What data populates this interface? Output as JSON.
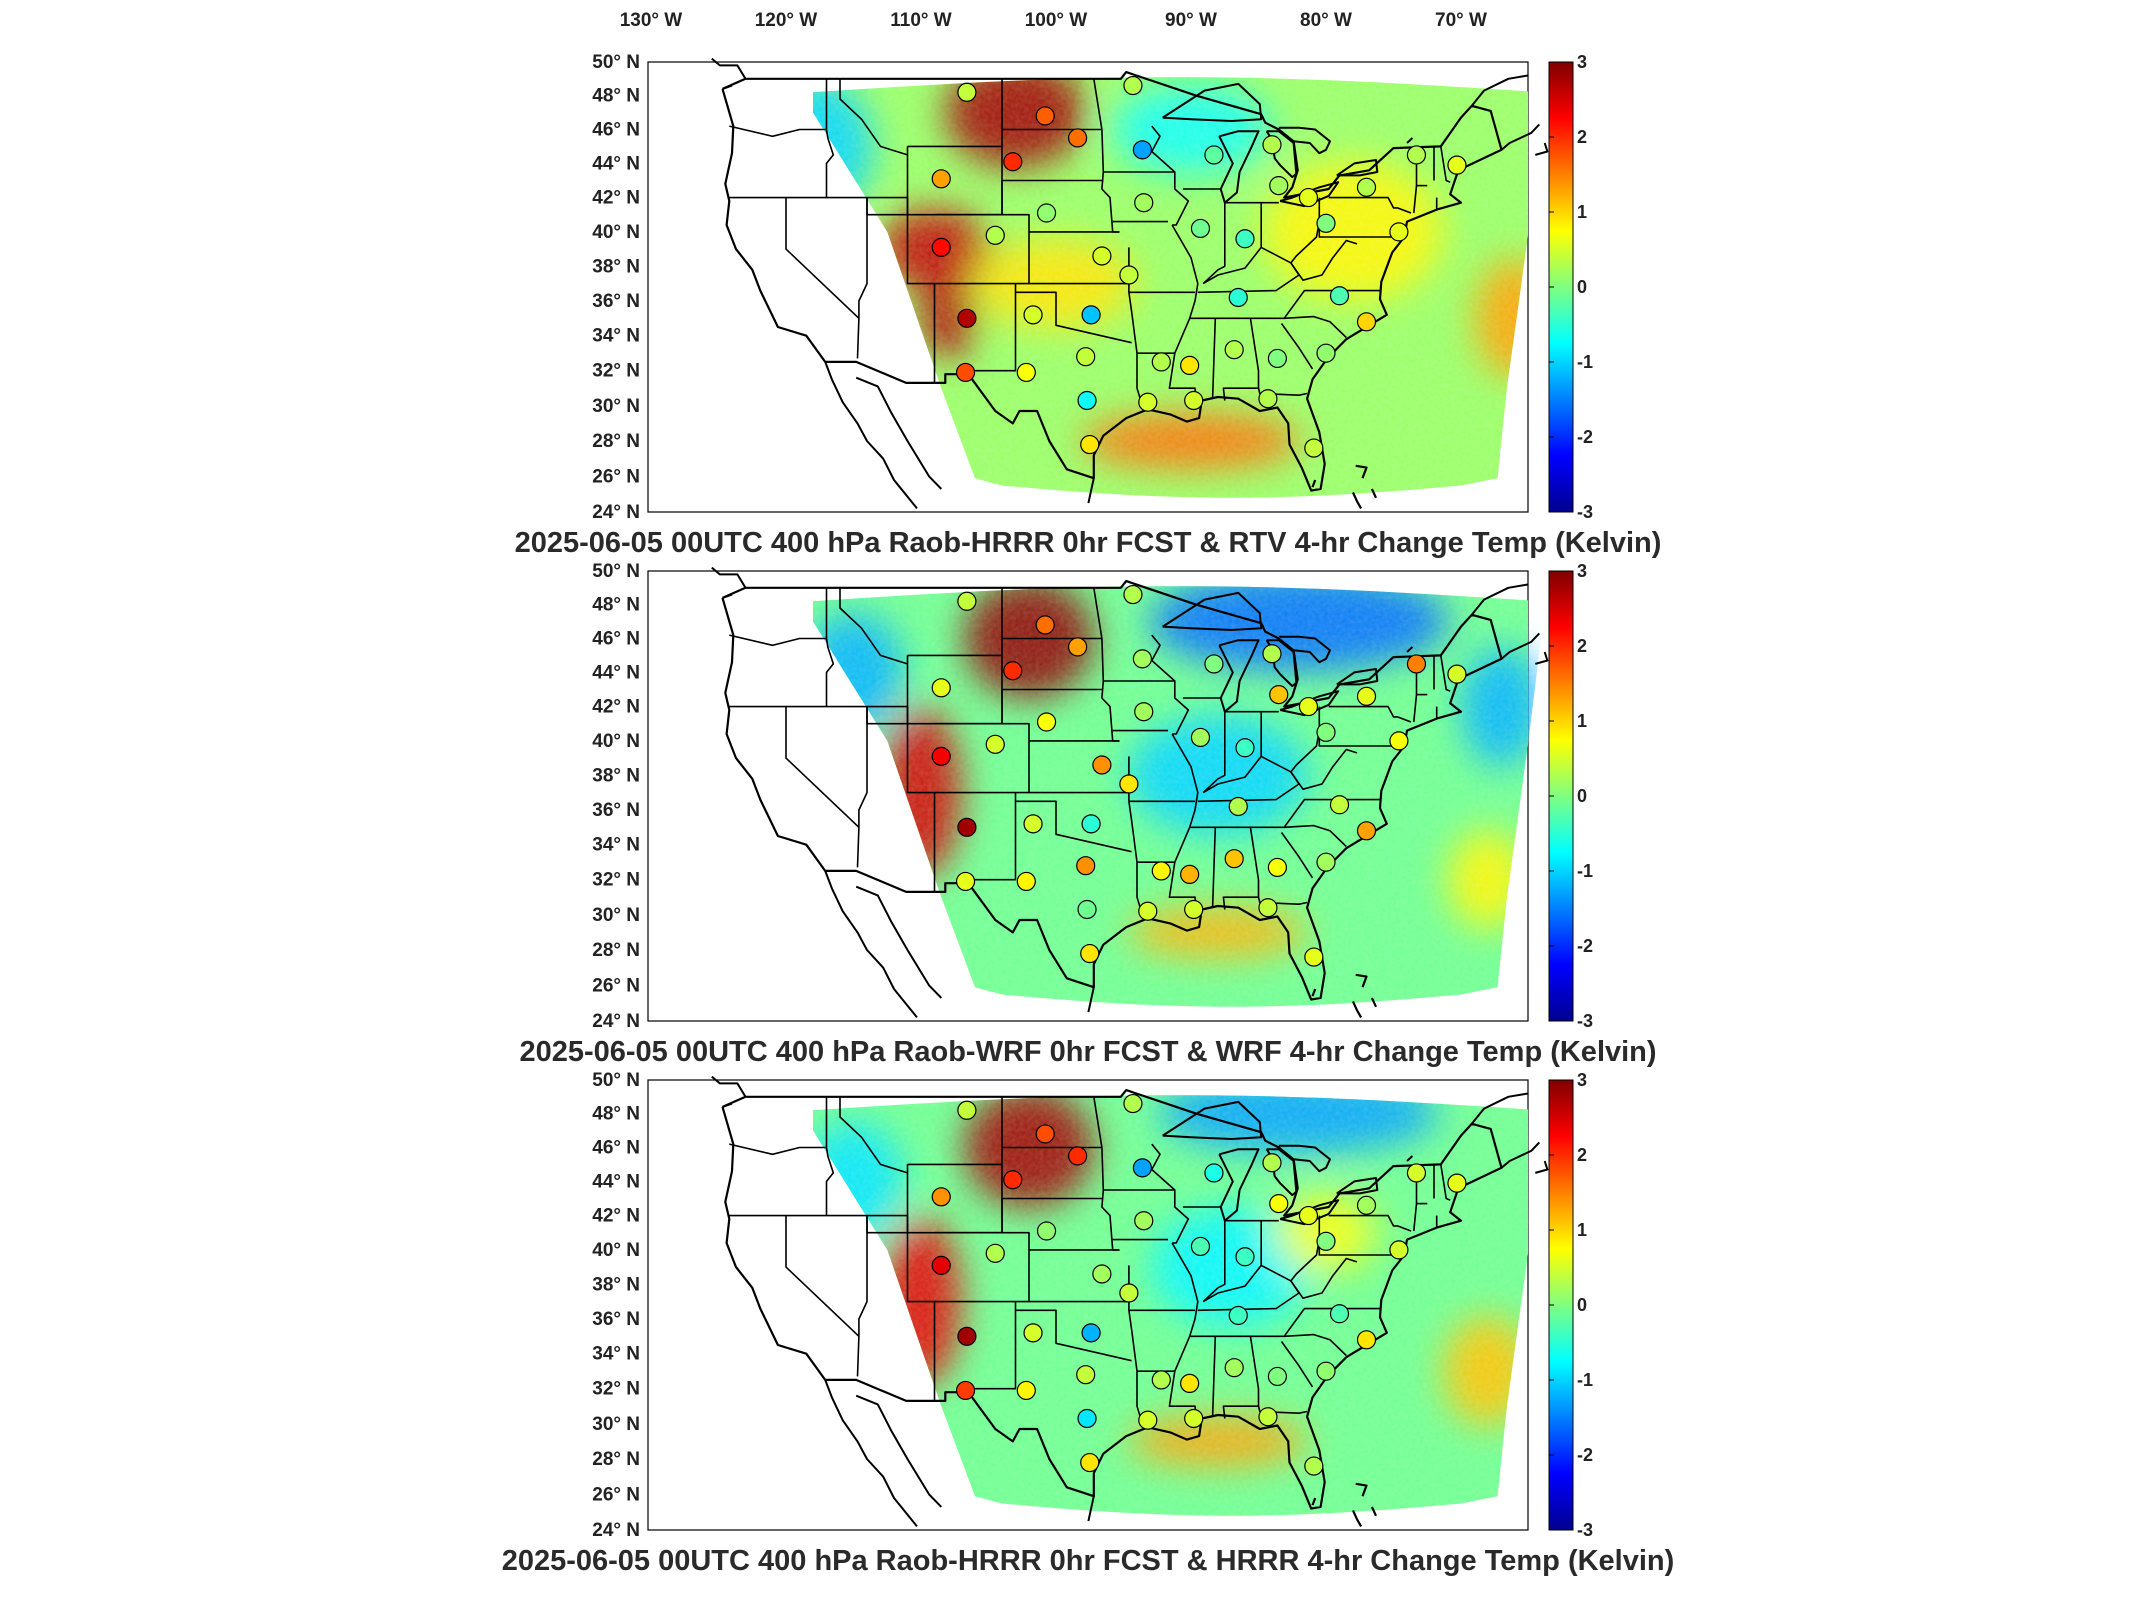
{
  "top_longitude_labels": [
    "130° W",
    "120° W",
    "110° W",
    "100° W",
    "90° W",
    "80° W",
    "70° W"
  ],
  "latitude_labels": [
    "50° N",
    "48° N",
    "46° N",
    "44° N",
    "42° N",
    "40° N",
    "38° N",
    "36° N",
    "34° N",
    "32° N",
    "30° N",
    "28° N",
    "26° N",
    "24° N"
  ],
  "colorbar": {
    "ticks": [
      "3",
      "2",
      "1",
      "0",
      "-1",
      "-2",
      "-3"
    ],
    "colors": [
      "#7f0000",
      "#ff0000",
      "#ff8000",
      "#ffff00",
      "#80ff80",
      "#00ffff",
      "#0080ff",
      "#0000ff",
      "#00008f"
    ]
  },
  "panels": [
    {
      "title": "2025-06-05 00UTC 400 hPa Raob-HRRR 0hr FCST & RTV 4-hr Change Temp (Kelvin)",
      "anomalies": [
        {
          "lon": -103,
          "lat": 47,
          "v": 2.8,
          "rx": 70,
          "ry": 55
        },
        {
          "lon": -109,
          "lat": 39,
          "v": 2.6,
          "rx": 55,
          "ry": 40
        },
        {
          "lon": -108,
          "lat": 35,
          "v": 2.7,
          "rx": 28,
          "ry": 40
        },
        {
          "lon": -90,
          "lat": 28,
          "v": 1.6,
          "rx": 110,
          "ry": 28
        },
        {
          "lon": -66,
          "lat": 35,
          "v": 1.3,
          "rx": 40,
          "ry": 60
        },
        {
          "lon": -78,
          "lat": 40,
          "v": 0.8,
          "rx": 90,
          "ry": 70
        },
        {
          "lon": -118,
          "lat": 45,
          "v": -1.0,
          "rx": 60,
          "ry": 70
        },
        {
          "lon": -90,
          "lat": 46,
          "v": -0.7,
          "rx": 80,
          "ry": 45
        },
        {
          "lon": -100,
          "lat": 37,
          "v": 0.9,
          "rx": 80,
          "ry": 45
        }
      ]
    },
    {
      "title": "2025-06-05 00UTC 400 hPa Raob-WRF 0hr FCST & WRF 4-hr Change Temp (Kelvin)",
      "anomalies": [
        {
          "lon": -102,
          "lat": 46,
          "v": 2.9,
          "rx": 65,
          "ry": 60
        },
        {
          "lon": -110,
          "lat": 37,
          "v": 2.5,
          "rx": 40,
          "ry": 85
        },
        {
          "lon": -82,
          "lat": 47,
          "v": -1.6,
          "rx": 150,
          "ry": 50
        },
        {
          "lon": -115,
          "lat": 44,
          "v": -1.2,
          "rx": 50,
          "ry": 60
        },
        {
          "lon": -88,
          "lat": 38,
          "v": -1.0,
          "rx": 90,
          "ry": 60
        },
        {
          "lon": -67,
          "lat": 42,
          "v": -1.2,
          "rx": 40,
          "ry": 60
        },
        {
          "lon": -88,
          "lat": 29,
          "v": 1.2,
          "rx": 90,
          "ry": 25
        },
        {
          "lon": -68,
          "lat": 32,
          "v": 0.8,
          "rx": 40,
          "ry": 50
        }
      ]
    },
    {
      "title": "2025-06-05 00UTC 400 hPa Raob-HRRR 0hr FCST & HRRR 4-hr Change Temp (Kelvin)",
      "anomalies": [
        {
          "lon": -102,
          "lat": 46,
          "v": 2.8,
          "rx": 65,
          "ry": 60
        },
        {
          "lon": -110,
          "lat": 37,
          "v": 2.4,
          "rx": 40,
          "ry": 85
        },
        {
          "lon": -82,
          "lat": 48,
          "v": -1.3,
          "rx": 140,
          "ry": 40
        },
        {
          "lon": -115,
          "lat": 44,
          "v": -0.9,
          "rx": 50,
          "ry": 60
        },
        {
          "lon": -87,
          "lat": 39,
          "v": -0.8,
          "rx": 80,
          "ry": 60
        },
        {
          "lon": -88,
          "lat": 29,
          "v": 1.3,
          "rx": 90,
          "ry": 25
        },
        {
          "lon": -68,
          "lat": 33,
          "v": 1.1,
          "rx": 45,
          "ry": 55
        },
        {
          "lon": -80,
          "lat": 41,
          "v": 0.7,
          "rx": 50,
          "ry": 40
        }
      ]
    }
  ],
  "raob_stations": [
    {
      "lon": -106.6,
      "lat": 48.2,
      "v": [
        0.4,
        0.4,
        0.4
      ]
    },
    {
      "lon": -100.8,
      "lat": 46.8,
      "v": [
        1.7,
        1.6,
        1.8
      ]
    },
    {
      "lon": -98.4,
      "lat": 45.5,
      "v": [
        1.6,
        1.3,
        2.0
      ]
    },
    {
      "lon": -103.2,
      "lat": 44.1,
      "v": [
        2.0,
        2.0,
        2.0
      ]
    },
    {
      "lon": -108.5,
      "lat": 43.1,
      "v": [
        1.3,
        0.6,
        1.4
      ]
    },
    {
      "lon": -93.6,
      "lat": 44.8,
      "v": [
        -1.3,
        0.2,
        -1.3
      ]
    },
    {
      "lon": -84.0,
      "lat": 45.1,
      "v": [
        0.3,
        0.3,
        0.3
      ]
    },
    {
      "lon": -88.3,
      "lat": 44.5,
      "v": [
        -0.2,
        0.0,
        -0.6
      ]
    },
    {
      "lon": -83.5,
      "lat": 42.7,
      "v": [
        0.2,
        1.1,
        0.7
      ]
    },
    {
      "lon": -93.5,
      "lat": 41.7,
      "v": [
        0.2,
        0.2,
        0.2
      ]
    },
    {
      "lon": -89.3,
      "lat": 40.2,
      "v": [
        -0.1,
        0.2,
        -0.3
      ]
    },
    {
      "lon": -81.3,
      "lat": 42.0,
      "v": [
        0.6,
        0.6,
        0.6
      ]
    },
    {
      "lon": -86.0,
      "lat": 39.6,
      "v": [
        -0.4,
        -0.4,
        -0.4
      ]
    },
    {
      "lon": -77.0,
      "lat": 42.6,
      "v": [
        0.3,
        0.6,
        0.2
      ]
    },
    {
      "lon": -80.0,
      "lat": 40.5,
      "v": [
        0.0,
        0.0,
        0.0
      ]
    },
    {
      "lon": -74.6,
      "lat": 40.0,
      "v": [
        0.6,
        0.7,
        0.5
      ]
    },
    {
      "lon": -73.3,
      "lat": 44.5,
      "v": [
        0.3,
        1.5,
        0.5
      ]
    },
    {
      "lon": -70.3,
      "lat": 43.9,
      "v": [
        0.6,
        0.5,
        0.6
      ]
    },
    {
      "lon": -100.7,
      "lat": 41.1,
      "v": [
        0.1,
        0.7,
        0.1
      ]
    },
    {
      "lon": -96.6,
      "lat": 38.6,
      "v": [
        0.5,
        1.4,
        0.2
      ]
    },
    {
      "lon": -104.5,
      "lat": 39.8,
      "v": [
        0.3,
        0.5,
        0.3
      ]
    },
    {
      "lon": -108.5,
      "lat": 39.1,
      "v": [
        2.2,
        2.3,
        2.4
      ]
    },
    {
      "lon": -106.6,
      "lat": 35.0,
      "v": [
        2.7,
        2.8,
        2.8
      ]
    },
    {
      "lon": -101.7,
      "lat": 35.2,
      "v": [
        0.5,
        0.5,
        0.5
      ]
    },
    {
      "lon": -97.4,
      "lat": 35.2,
      "v": [
        -1.1,
        -0.5,
        -1.2
      ]
    },
    {
      "lon": -94.6,
      "lat": 37.5,
      "v": [
        0.4,
        0.9,
        0.4
      ]
    },
    {
      "lon": -86.5,
      "lat": 36.2,
      "v": [
        -0.5,
        0.3,
        -0.4
      ]
    },
    {
      "lon": -79.0,
      "lat": 36.3,
      "v": [
        -0.3,
        0.4,
        -0.3
      ]
    },
    {
      "lon": -106.7,
      "lat": 31.9,
      "v": [
        1.8,
        0.6,
        1.9
      ]
    },
    {
      "lon": -102.2,
      "lat": 31.9,
      "v": [
        0.7,
        0.8,
        0.8
      ]
    },
    {
      "lon": -97.8,
      "lat": 32.8,
      "v": [
        0.4,
        1.4,
        0.4
      ]
    },
    {
      "lon": -92.2,
      "lat": 32.5,
      "v": [
        0.3,
        0.8,
        0.3
      ]
    },
    {
      "lon": -90.1,
      "lat": 32.3,
      "v": [
        0.9,
        1.2,
        0.9
      ]
    },
    {
      "lon": -86.8,
      "lat": 33.2,
      "v": [
        0.3,
        1.1,
        0.2
      ]
    },
    {
      "lon": -83.6,
      "lat": 32.7,
      "v": [
        0.0,
        0.7,
        0.0
      ]
    },
    {
      "lon": -80.0,
      "lat": 33.0,
      "v": [
        0.1,
        0.2,
        0.1
      ]
    },
    {
      "lon": -77.0,
      "lat": 34.8,
      "v": [
        1.0,
        1.3,
        0.9
      ]
    },
    {
      "lon": -89.8,
      "lat": 30.3,
      "v": [
        0.5,
        0.5,
        0.5
      ]
    },
    {
      "lon": -84.3,
      "lat": 30.4,
      "v": [
        0.3,
        0.4,
        0.4
      ]
    },
    {
      "lon": -97.7,
      "lat": 30.3,
      "v": [
        -0.7,
        -0.1,
        -0.9
      ]
    },
    {
      "lon": -97.5,
      "lat": 27.8,
      "v": [
        0.9,
        0.9,
        0.9
      ]
    },
    {
      "lon": -93.2,
      "lat": 30.2,
      "v": [
        0.5,
        0.5,
        0.5
      ]
    },
    {
      "lon": -80.9,
      "lat": 27.6,
      "v": [
        0.4,
        0.6,
        0.3
      ]
    },
    {
      "lon": -94.3,
      "lat": 48.6,
      "v": [
        0.3,
        0.3,
        0.3
      ]
    }
  ]
}
